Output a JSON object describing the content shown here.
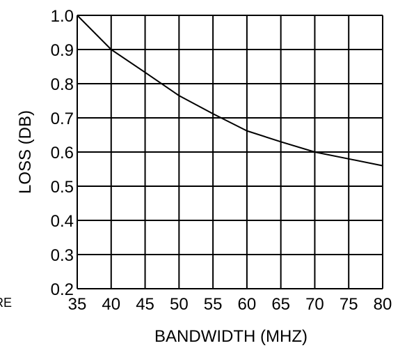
{
  "chart_data": {
    "type": "line",
    "title": "",
    "xlabel": "BANDWIDTH (MHZ)",
    "ylabel": "LOSS (DB)",
    "xlim": [
      35,
      80
    ],
    "ylim": [
      0.2,
      1.0
    ],
    "grid": true,
    "x_ticks": [
      35,
      40,
      45,
      50,
      55,
      60,
      65,
      70,
      75,
      80
    ],
    "x_tick_labels": [
      "35",
      "40",
      "45",
      "50",
      "55",
      "60",
      "65",
      "70",
      "75",
      "80"
    ],
    "y_ticks": [
      0.2,
      0.3,
      0.4,
      0.5,
      0.6,
      0.7,
      0.8,
      0.9,
      1.0
    ],
    "y_tick_labels": [
      "0.2",
      "0.3",
      "0.4",
      "0.5",
      "0.6",
      "0.7",
      "0.8",
      "0.9",
      "1.0"
    ],
    "x": [
      35,
      40,
      45,
      50,
      55,
      60,
      65,
      70,
      75,
      80
    ],
    "series": [
      {
        "values": [
          1.0,
          0.9,
          0.833,
          0.765,
          0.712,
          0.662,
          0.63,
          0.6,
          0.58,
          0.56
        ]
      }
    ],
    "line_color": "#000000",
    "grid_color": "#000000"
  },
  "side_note": "RE"
}
